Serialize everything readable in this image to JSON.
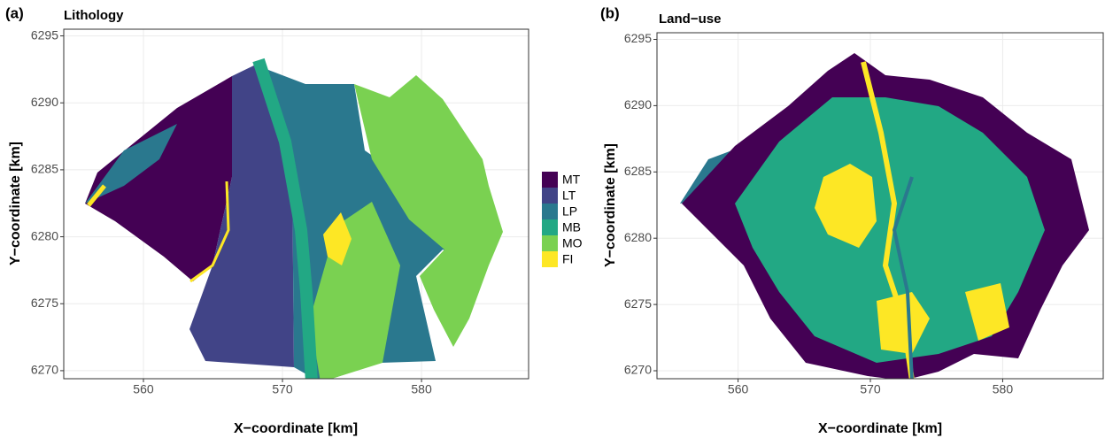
{
  "chart_data": [
    {
      "type": "map",
      "panel_label": "(a)",
      "title": "Lithology",
      "x_label": "X−coordinate [km]",
      "y_label": "Y−coordinate [km]",
      "xlim": [
        554.27,
        587.7
      ],
      "ylim": [
        6269.4,
        6295.5
      ],
      "xticks": [
        560,
        570,
        580
      ],
      "yticks": [
        6270,
        6275,
        6280,
        6285,
        6290,
        6295
      ],
      "grid": true,
      "legend": "right",
      "series": [
        {
          "name": "MT",
          "color": "#440154"
        },
        {
          "name": "LT",
          "color": "#414487"
        },
        {
          "name": "LP",
          "color": "#2A788E"
        },
        {
          "name": "MB",
          "color": "#22A884"
        },
        {
          "name": "MO",
          "color": "#7AD151"
        },
        {
          "name": "FI",
          "color": "#FDE725"
        }
      ]
    },
    {
      "type": "map",
      "panel_label": "(b)",
      "title": "Land−use",
      "x_label": "X−coordinate [km]",
      "y_label": "Y−coordinate [km]",
      "xlim": [
        553.87,
        587.6
      ],
      "ylim": [
        6269.4,
        6295.5
      ],
      "xticks": [
        560,
        570,
        580
      ],
      "yticks": [
        6270,
        6275,
        6280,
        6285,
        6290,
        6295
      ],
      "grid": true
    }
  ]
}
